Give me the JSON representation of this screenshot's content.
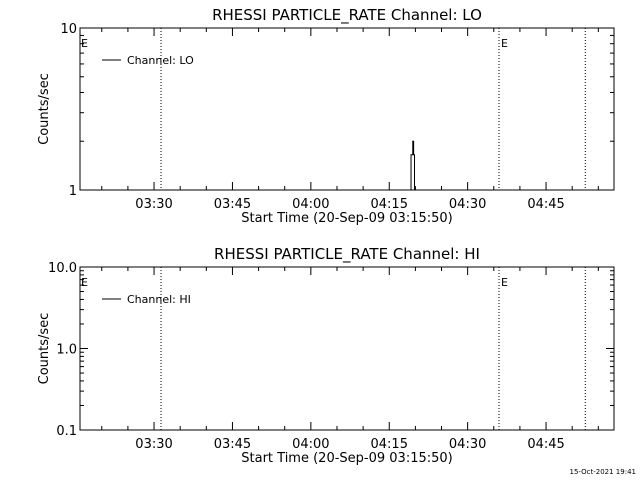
{
  "footer_timestamp": "15-Oct-2021 19:41",
  "chart_data": [
    {
      "type": "line",
      "title": "RHESSI PARTICLE_RATE Channel: LO",
      "ylabel": "Counts/sec",
      "xlabel": "Start Time (20-Sep-09 03:15:50)",
      "yscale": "log",
      "ylim": [
        1,
        10
      ],
      "yticks": [
        {
          "value": 1,
          "label": "1"
        },
        {
          "value": 10,
          "label": "10"
        }
      ],
      "xlim": [
        "03:15:50",
        "04:58:00"
      ],
      "xticks": [
        "03:30",
        "03:45",
        "04:00",
        "04:15",
        "04:30",
        "04:45"
      ],
      "legend": {
        "position": "top-left",
        "entries": [
          "Channel: LO"
        ]
      },
      "markers": [
        {
          "x": "03:31:20",
          "label": ""
        },
        {
          "x": "04:36:00",
          "label": "E"
        },
        {
          "x": "04:52:30",
          "label": ""
        }
      ],
      "left_marker_label": "E",
      "series": [
        {
          "name": "Channel: LO",
          "x": [
            "04:19:00",
            "04:19:10",
            "04:19:20",
            "04:19:30",
            "04:19:40",
            "04:19:50",
            "04:20:00"
          ],
          "values": [
            1,
            1.65,
            1.65,
            2.0,
            1.65,
            1.0,
            1.0
          ]
        }
      ]
    },
    {
      "type": "line",
      "title": "RHESSI PARTICLE_RATE Channel: HI",
      "ylabel": "Counts/sec",
      "xlabel": "Start Time (20-Sep-09 03:15:50)",
      "yscale": "log",
      "ylim": [
        0.1,
        10
      ],
      "yticks": [
        {
          "value": 0.1,
          "label": "0.1"
        },
        {
          "value": 1,
          "label": "1.0"
        },
        {
          "value": 10,
          "label": "10.0"
        }
      ],
      "xlim": [
        "03:15:50",
        "04:58:00"
      ],
      "xticks": [
        "03:30",
        "03:45",
        "04:00",
        "04:15",
        "04:30",
        "04:45"
      ],
      "legend": {
        "position": "top-left",
        "entries": [
          "Channel: HI"
        ]
      },
      "markers": [
        {
          "x": "03:31:20",
          "label": ""
        },
        {
          "x": "04:36:00",
          "label": "E"
        },
        {
          "x": "04:52:30",
          "label": ""
        }
      ],
      "left_marker_label": "E",
      "series": [
        {
          "name": "Channel: HI",
          "x": [],
          "values": []
        }
      ]
    }
  ]
}
